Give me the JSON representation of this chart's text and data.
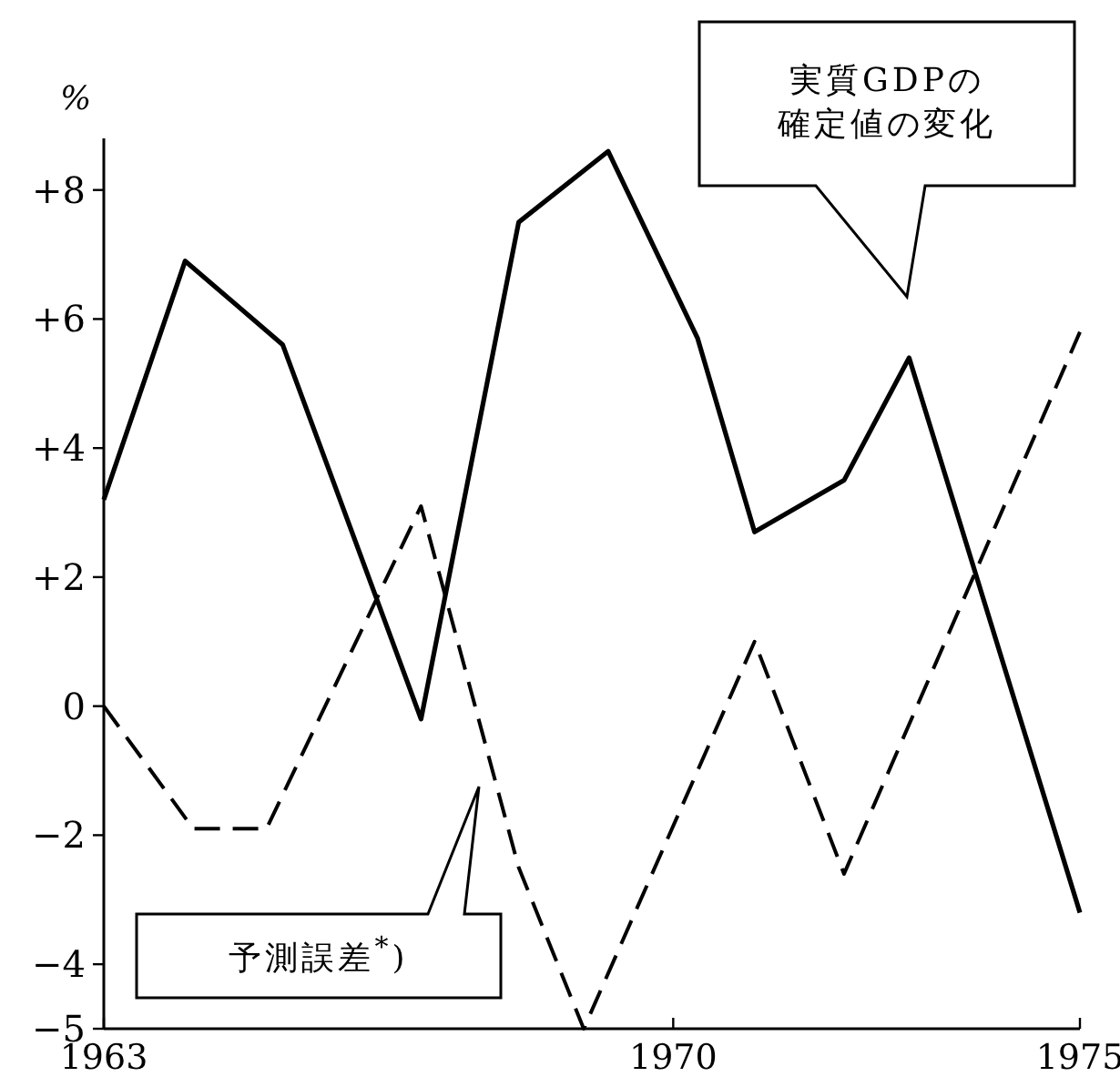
{
  "chart_data": {
    "type": "line",
    "ylabel": "%",
    "xlim": [
      1963,
      1975
    ],
    "xticks": [
      1963,
      1970,
      1975
    ],
    "ylim": [
      -5,
      8.8
    ],
    "yticks": [
      {
        "value": 8,
        "label": "+8"
      },
      {
        "value": 6,
        "label": "+6"
      },
      {
        "value": 4,
        "label": "+4"
      },
      {
        "value": 2,
        "label": "+2"
      },
      0,
      {
        "value": -2,
        "label": "−2"
      },
      {
        "value": -4,
        "label": "−4"
      },
      {
        "value": -5,
        "label": "−5"
      }
    ],
    "grid": false,
    "series": [
      {
        "color": "#000000",
        "line_style": "solid",
        "x": [
          1963,
          1964,
          1965.2,
          1966.9,
          1968.1,
          1969.2,
          1970.3,
          1971,
          1972.1,
          1972.9,
          1975
        ],
        "values": [
          3.2,
          6.9,
          5.6,
          -0.2,
          7.5,
          8.6,
          5.7,
          2.7,
          3.5,
          5.4,
          -3.2
        ]
      },
      {
        "color": "#000000",
        "line_style": "dashed",
        "x": [
          1963,
          1964.1,
          1965,
          1966.9,
          1968.1,
          1968.9,
          1971,
          1972.1,
          1975
        ],
        "values": [
          0,
          -1.9,
          -1.9,
          3.1,
          -2.5,
          -5,
          1,
          -2.6,
          5.8
        ]
      }
    ],
    "annotations": [
      "実質GDPの確定値の変化",
      "予測誤差$^{*}$)"
    ]
  }
}
